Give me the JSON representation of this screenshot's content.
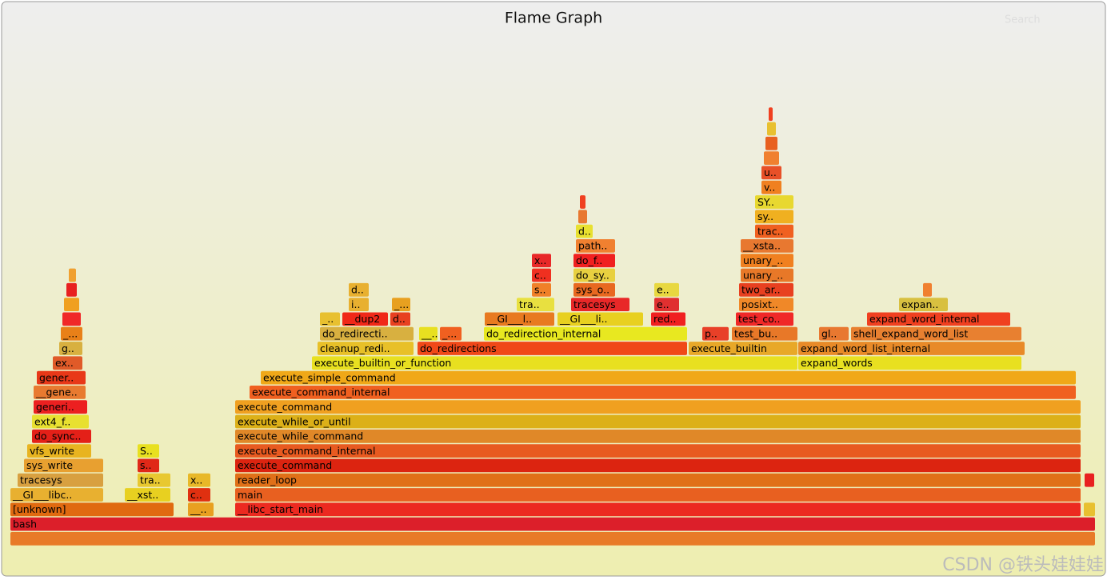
{
  "chart_data": {
    "type": "flame",
    "title": "Flame Graph",
    "search": "Search",
    "watermark": "CSDN @铁头娃娃娃",
    "xlim": [
      0,
      1357
    ],
    "frames": [
      {
        "depth": 0,
        "start": 0,
        "width": 1357,
        "color": "#e87a28"
      },
      {
        "name": "bash",
        "depth": 1,
        "start": 0,
        "width": 1357,
        "color": "#dc1f2a"
      },
      {
        "name": "[unknown]",
        "depth": 2,
        "start": 0,
        "width": 205,
        "color": "#e06a10"
      },
      {
        "name": "__..",
        "depth": 2,
        "start": 222,
        "width": 33,
        "color": "#e8a020"
      },
      {
        "name": "__libc_start_main",
        "depth": 2,
        "start": 281,
        "width": 1058,
        "color": "#ec2a20"
      },
      {
        "depth": 2,
        "start": 1342,
        "width": 15,
        "color": "#e8c030"
      },
      {
        "name": "__GI___libc..",
        "depth": 3,
        "start": 0,
        "width": 117,
        "color": "#e8b030"
      },
      {
        "name": "__xst..",
        "depth": 3,
        "start": 143,
        "width": 58,
        "color": "#e8d020"
      },
      {
        "name": "c..",
        "depth": 3,
        "start": 222,
        "width": 29,
        "color": "#e03010"
      },
      {
        "name": "main",
        "depth": 3,
        "start": 281,
        "width": 1058,
        "color": "#e86020"
      },
      {
        "name": "tracesys",
        "depth": 4,
        "start": 9,
        "width": 108,
        "color": "#d8a040"
      },
      {
        "name": "tra..",
        "depth": 4,
        "start": 159,
        "width": 42,
        "color": "#e8c830"
      },
      {
        "name": "x..",
        "depth": 4,
        "start": 222,
        "width": 29,
        "color": "#e8b828"
      },
      {
        "name": "reader_loop",
        "depth": 4,
        "start": 281,
        "width": 1058,
        "color": "#e07018"
      },
      {
        "depth": 4,
        "start": 1343,
        "width": 13,
        "color": "#e82020"
      },
      {
        "name": "sys_write",
        "depth": 5,
        "start": 17,
        "width": 100,
        "color": "#e8a030"
      },
      {
        "name": "s..",
        "depth": 5,
        "start": 159,
        "width": 28,
        "color": "#e02818"
      },
      {
        "name": "execute_command",
        "depth": 5,
        "start": 281,
        "width": 1058,
        "color": "#dc2410"
      },
      {
        "name": "vfs_write",
        "depth": 6,
        "start": 21,
        "width": 81,
        "color": "#e8b420"
      },
      {
        "name": "S..",
        "depth": 6,
        "start": 159,
        "width": 28,
        "color": "#e8e020"
      },
      {
        "name": "execute_command_internal",
        "depth": 6,
        "start": 281,
        "width": 1058,
        "color": "#e85a20"
      },
      {
        "name": "do_sync..",
        "depth": 7,
        "start": 27,
        "width": 75,
        "color": "#e42018"
      },
      {
        "name": "execute_while_command",
        "depth": 7,
        "start": 281,
        "width": 1058,
        "color": "#e08828"
      },
      {
        "name": "ext4_f..",
        "depth": 8,
        "start": 27,
        "width": 72,
        "color": "#e8e030"
      },
      {
        "name": "execute_while_or_until",
        "depth": 8,
        "start": 281,
        "width": 1058,
        "color": "#dcb018"
      },
      {
        "name": "generi..",
        "depth": 9,
        "start": 29,
        "width": 68,
        "color": "#ec2020"
      },
      {
        "name": "execute_command",
        "depth": 9,
        "start": 281,
        "width": 1058,
        "color": "#f0a020"
      },
      {
        "name": "__gene..",
        "depth": 10,
        "start": 29,
        "width": 66,
        "color": "#e87a30"
      },
      {
        "name": "execute_command_internal",
        "depth": 10,
        "start": 299,
        "width": 1034,
        "color": "#f06020"
      },
      {
        "name": "gener..",
        "depth": 11,
        "start": 33,
        "width": 62,
        "color": "#e83818"
      },
      {
        "name": "execute_simple_command",
        "depth": 11,
        "start": 313,
        "width": 1020,
        "color": "#f0a818"
      },
      {
        "name": "ex..",
        "depth": 12,
        "start": 53,
        "width": 38,
        "color": "#e05a28"
      },
      {
        "name": "execute_builtin_or_function",
        "depth": 12,
        "start": 377,
        "width": 608,
        "color": "#e8e020"
      },
      {
        "name": "expand_words",
        "depth": 12,
        "start": 985,
        "width": 280,
        "color": "#e8e020"
      },
      {
        "name": "g..",
        "depth": 13,
        "start": 61,
        "width": 30,
        "color": "#d8b040"
      },
      {
        "name": "cleanup_redi..",
        "depth": 13,
        "start": 384,
        "width": 121,
        "color": "#e8c028"
      },
      {
        "name": "do_redirections",
        "depth": 13,
        "start": 509,
        "width": 338,
        "color": "#f04818"
      },
      {
        "name": "execute_builtin",
        "depth": 13,
        "start": 848,
        "width": 137,
        "color": "#e8a828"
      },
      {
        "name": "expand_word_list_internal",
        "depth": 13,
        "start": 985,
        "width": 284,
        "color": "#e88a28"
      },
      {
        "name": "_...",
        "depth": 14,
        "start": 63,
        "width": 28,
        "color": "#e88018"
      },
      {
        "name": "do_redirecti..",
        "depth": 14,
        "start": 387,
        "width": 118,
        "color": "#d8b040"
      },
      {
        "name": "__..",
        "depth": 14,
        "start": 511,
        "width": 24,
        "color": "#e8e020"
      },
      {
        "name": "_...",
        "depth": 14,
        "start": 537,
        "width": 28,
        "color": "#f06020"
      },
      {
        "name": "do_redirection_internal",
        "depth": 14,
        "start": 592,
        "width": 255,
        "color": "#e8e820"
      },
      {
        "name": "p..",
        "depth": 14,
        "start": 865,
        "width": 34,
        "color": "#e84028"
      },
      {
        "name": "test_bu..",
        "depth": 14,
        "start": 902,
        "width": 83,
        "color": "#e87828"
      },
      {
        "name": "gl..",
        "depth": 14,
        "start": 1011,
        "width": 38,
        "color": "#e87830"
      },
      {
        "name": "shell_expand_word_list",
        "depth": 14,
        "start": 1051,
        "width": 214,
        "color": "#e88030"
      },
      {
        "depth": 15,
        "start": 65,
        "width": 24,
        "color": "#f02828"
      },
      {
        "name": "_..",
        "depth": 15,
        "start": 387,
        "width": 26,
        "color": "#e8c030"
      },
      {
        "name": "__dup2",
        "depth": 15,
        "start": 415,
        "width": 58,
        "color": "#f02818"
      },
      {
        "name": "d..",
        "depth": 15,
        "start": 475,
        "width": 26,
        "color": "#e84020"
      },
      {
        "name": "__GI___l..",
        "depth": 15,
        "start": 593,
        "width": 88,
        "color": "#e87a20"
      },
      {
        "name": "__GI___li..",
        "depth": 15,
        "start": 684,
        "width": 108,
        "color": "#e8d020"
      },
      {
        "name": "red..",
        "depth": 15,
        "start": 801,
        "width": 44,
        "color": "#f02020"
      },
      {
        "name": "test_co..",
        "depth": 15,
        "start": 907,
        "width": 73,
        "color": "#f02828"
      },
      {
        "name": "expand_word_internal",
        "depth": 15,
        "start": 1071,
        "width": 180,
        "color": "#f04020"
      },
      {
        "depth": 16,
        "start": 67,
        "width": 20,
        "color": "#f0a020"
      },
      {
        "name": "i..",
        "depth": 16,
        "start": 423,
        "width": 26,
        "color": "#e8b030"
      },
      {
        "name": "_...",
        "depth": 16,
        "start": 477,
        "width": 24,
        "color": "#e8a020"
      },
      {
        "name": "tra..",
        "depth": 16,
        "start": 633,
        "width": 48,
        "color": "#e8e040"
      },
      {
        "name": "tracesys",
        "depth": 16,
        "start": 701,
        "width": 74,
        "color": "#e82828"
      },
      {
        "name": "e..",
        "depth": 16,
        "start": 805,
        "width": 32,
        "color": "#e03030"
      },
      {
        "name": "posixt..",
        "depth": 16,
        "start": 911,
        "width": 69,
        "color": "#f08828"
      },
      {
        "name": "expan..",
        "depth": 16,
        "start": 1111,
        "width": 62,
        "color": "#d8c040"
      },
      {
        "depth": 17,
        "start": 70,
        "width": 14,
        "color": "#e82020"
      },
      {
        "name": "d..",
        "depth": 17,
        "start": 423,
        "width": 26,
        "color": "#e8b030"
      },
      {
        "name": "s..",
        "depth": 17,
        "start": 652,
        "width": 25,
        "color": "#f08028"
      },
      {
        "name": "sys_o..",
        "depth": 17,
        "start": 704,
        "width": 53,
        "color": "#e86820"
      },
      {
        "name": "e..",
        "depth": 17,
        "start": 805,
        "width": 32,
        "color": "#e8d840"
      },
      {
        "name": "two_ar..",
        "depth": 17,
        "start": 911,
        "width": 69,
        "color": "#e84020"
      },
      {
        "depth": 17,
        "start": 1141,
        "width": 12,
        "color": "#f08030"
      },
      {
        "depth": 18,
        "start": 73,
        "width": 10,
        "color": "#f0a030"
      },
      {
        "name": "c..",
        "depth": 18,
        "start": 652,
        "width": 25,
        "color": "#f03020"
      },
      {
        "name": "do_sy..",
        "depth": 18,
        "start": 704,
        "width": 53,
        "color": "#e8d040"
      },
      {
        "name": "unary_..",
        "depth": 18,
        "start": 913,
        "width": 67,
        "color": "#e87828"
      },
      {
        "name": "x..",
        "depth": 19,
        "start": 652,
        "width": 25,
        "color": "#e82828"
      },
      {
        "name": "do_f..",
        "depth": 19,
        "start": 704,
        "width": 53,
        "color": "#f02020"
      },
      {
        "name": "unary_..",
        "depth": 19,
        "start": 913,
        "width": 67,
        "color": "#f08020"
      },
      {
        "name": "path..",
        "depth": 20,
        "start": 707,
        "width": 50,
        "color": "#f08030"
      },
      {
        "name": "__xsta..",
        "depth": 20,
        "start": 913,
        "width": 67,
        "color": "#e87830"
      },
      {
        "name": "d..",
        "depth": 21,
        "start": 707,
        "width": 22,
        "color": "#e8e030"
      },
      {
        "name": "trac..",
        "depth": 21,
        "start": 931,
        "width": 49,
        "color": "#f06020"
      },
      {
        "depth": 22,
        "start": 710,
        "width": 12,
        "color": "#e87830"
      },
      {
        "name": "sy..",
        "depth": 22,
        "start": 931,
        "width": 49,
        "color": "#f0b020"
      },
      {
        "depth": 23,
        "start": 712,
        "width": 8,
        "color": "#f04020"
      },
      {
        "name": "SY..",
        "depth": 23,
        "start": 931,
        "width": 49,
        "color": "#e8d830"
      },
      {
        "name": "v..",
        "depth": 24,
        "start": 939,
        "width": 26,
        "color": "#f08020"
      },
      {
        "name": "u..",
        "depth": 25,
        "start": 939,
        "width": 26,
        "color": "#e85028"
      },
      {
        "depth": 26,
        "start": 942,
        "width": 20,
        "color": "#f08030"
      },
      {
        "depth": 27,
        "start": 944,
        "width": 16,
        "color": "#e86020"
      },
      {
        "depth": 28,
        "start": 946,
        "width": 12,
        "color": "#e8c030"
      },
      {
        "depth": 29,
        "start": 948,
        "width": 6,
        "color": "#f04020"
      }
    ]
  }
}
